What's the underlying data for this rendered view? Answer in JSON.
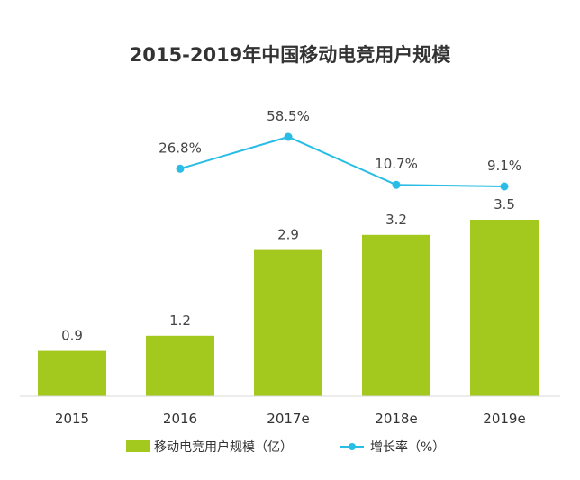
{
  "chart_data": {
    "type": "bar",
    "title": "2015-2019年中国移动电竞用户规模",
    "categories": [
      "2015",
      "2016",
      "2017e",
      "2018e",
      "2019e"
    ],
    "series": [
      {
        "name": "移动电竞用户规模（亿）",
        "kind": "bar",
        "color": "#a3c81e",
        "values": [
          0.9,
          1.2,
          2.9,
          3.2,
          3.5
        ],
        "labels": [
          "0.9",
          "1.2",
          "2.9",
          "3.2",
          "3.5"
        ]
      },
      {
        "name": "增长率（%）",
        "kind": "line",
        "color": "#29bde6",
        "values": [
          null,
          26.8,
          58.5,
          10.7,
          9.1
        ],
        "labels": [
          null,
          "26.8%",
          "58.5%",
          "10.7%",
          "9.1%"
        ]
      }
    ],
    "legend": "bottom",
    "grid": false
  }
}
